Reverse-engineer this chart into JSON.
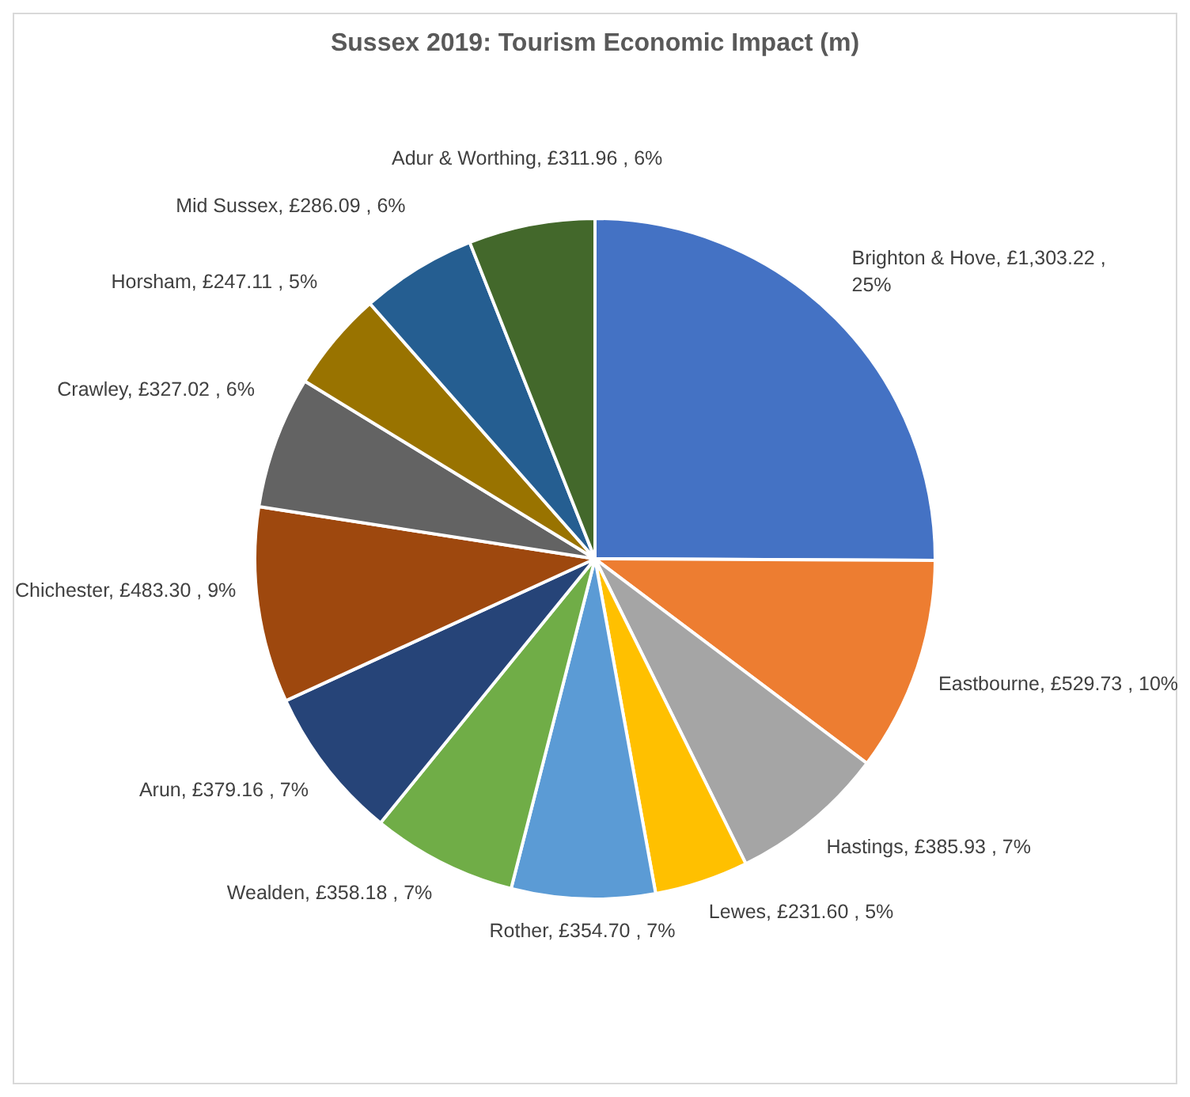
{
  "chart_data": {
    "type": "pie",
    "title": "Sussex 2019: Tourism Economic Impact (m)",
    "categories": [
      "Brighton & Hove",
      "Eastbourne",
      "Hastings",
      "Lewes",
      "Rother",
      "Wealden",
      "Arun",
      "Chichester",
      "Crawley",
      "Horsham",
      "Mid Sussex",
      "Adur & Worthing"
    ],
    "values": [
      1303.22,
      529.73,
      385.93,
      231.6,
      354.7,
      358.18,
      379.16,
      483.3,
      327.02,
      247.11,
      286.09,
      311.96
    ],
    "value_labels": [
      "£1,303.22 , 25%",
      "£529.73 , 10%",
      "£385.93 , 7%",
      "£231.60 , 5%",
      "£354.70 , 7%",
      "£358.18 , 7%",
      "£379.16 , 7%",
      "£483.30 , 9%",
      "£327.02 , 6%",
      "£247.11 , 5%",
      "£286.09 , 6%",
      "£311.96 , 6%"
    ],
    "colors": [
      "#4472c4",
      "#ed7d31",
      "#a5a5a5",
      "#ffc000",
      "#5b9bd5",
      "#70ad47",
      "#264478",
      "#9e480e",
      "#636363",
      "#997300",
      "#255e91",
      "#43682b"
    ]
  }
}
